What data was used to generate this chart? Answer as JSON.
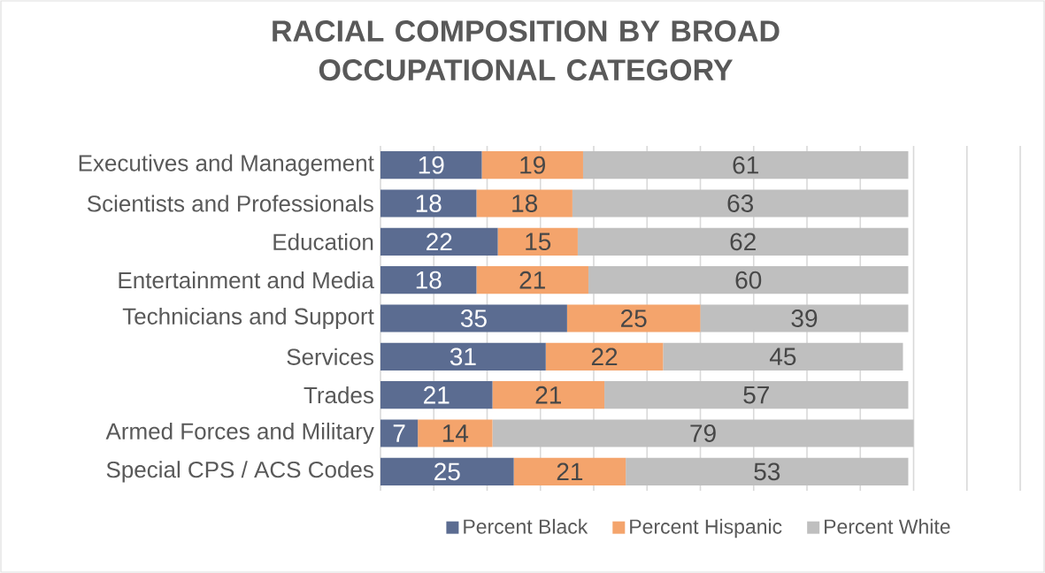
{
  "chart_data": {
    "type": "bar",
    "orientation": "horizontal",
    "stacked": true,
    "title": "RACIAL COMPOSITION BY BROAD OCCUPATIONAL CATEGORY",
    "categories": [
      "Executives and Management",
      "Scientists and Professionals",
      "Education",
      "Entertainment and Media",
      "Technicians and Support",
      "Services",
      "Trades",
      "Armed Forces and Military",
      "Special CPS / ACS Codes"
    ],
    "series": [
      {
        "name": "Percent Black",
        "color": "#5b6c91",
        "values": [
          19,
          18,
          22,
          18,
          35,
          31,
          21,
          7,
          25
        ]
      },
      {
        "name": "Percent Hispanic",
        "color": "#f4a46c",
        "values": [
          19,
          18,
          15,
          21,
          25,
          22,
          21,
          14,
          21
        ]
      },
      {
        "name": "Percent White",
        "color": "#bfbfbf",
        "values": [
          61,
          63,
          62,
          60,
          39,
          45,
          57,
          79,
          53
        ]
      }
    ],
    "grid": "x",
    "legend": "bottom",
    "data_labels": true,
    "tick_labels": "y"
  }
}
